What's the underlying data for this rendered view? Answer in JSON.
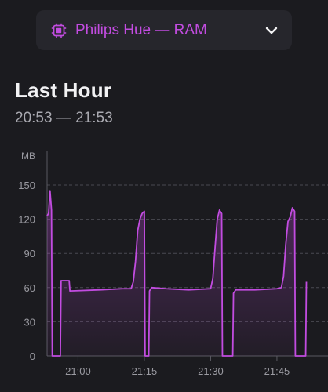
{
  "selector": {
    "label": "Philips Hue — RAM",
    "icon": "chip-icon",
    "accent": "#c24ce0"
  },
  "header": {
    "title": "Last Hour",
    "range": "20:53 — 21:53"
  },
  "chart_data": {
    "type": "line",
    "ylabel": "MB",
    "xlabel": "",
    "ylim": [
      0,
      150
    ],
    "xlim": [
      "20:53",
      "21:53"
    ],
    "yticks": [
      0,
      30,
      60,
      90,
      120,
      150
    ],
    "xticks": [
      "21:00",
      "21:15",
      "21:30",
      "21:45"
    ],
    "grid": true,
    "color": "#c24ce0",
    "series": [
      {
        "points": [
          [
            "20:53:00",
            123
          ],
          [
            "20:53:20",
            125
          ],
          [
            "20:53:40",
            145
          ],
          [
            "20:54:00",
            128
          ],
          [
            "20:54:10",
            0
          ],
          [
            "20:56:00",
            0
          ],
          [
            "20:56:10",
            66
          ],
          [
            "20:58:00",
            66
          ],
          [
            "20:58:10",
            57
          ],
          [
            "21:05:00",
            58
          ],
          [
            "21:10:00",
            59
          ],
          [
            "21:12:00",
            59
          ],
          [
            "21:12:30",
            65
          ],
          [
            "21:13:00",
            83
          ],
          [
            "21:13:30",
            110
          ],
          [
            "21:14:00",
            120
          ],
          [
            "21:14:30",
            125
          ],
          [
            "21:15:00",
            127
          ],
          [
            "21:15:10",
            0
          ],
          [
            "21:16:00",
            0
          ],
          [
            "21:16:10",
            57
          ],
          [
            "21:16:40",
            60
          ],
          [
            "21:20:00",
            59
          ],
          [
            "21:25:00",
            58
          ],
          [
            "21:30:00",
            59
          ],
          [
            "21:30:30",
            68
          ],
          [
            "21:31:00",
            95
          ],
          [
            "21:31:30",
            120
          ],
          [
            "21:32:00",
            128
          ],
          [
            "21:32:30",
            125
          ],
          [
            "21:32:40",
            0
          ],
          [
            "21:35:00",
            0
          ],
          [
            "21:35:10",
            55
          ],
          [
            "21:35:40",
            58
          ],
          [
            "21:40:00",
            58
          ],
          [
            "21:45:00",
            59
          ],
          [
            "21:46:00",
            60
          ],
          [
            "21:46:30",
            70
          ],
          [
            "21:47:00",
            98
          ],
          [
            "21:47:30",
            118
          ],
          [
            "21:48:00",
            122
          ],
          [
            "21:48:30",
            130
          ],
          [
            "21:49:00",
            127
          ],
          [
            "21:49:10",
            0
          ],
          [
            "21:51:30",
            0
          ],
          [
            "21:51:40",
            65
          ]
        ]
      }
    ]
  }
}
